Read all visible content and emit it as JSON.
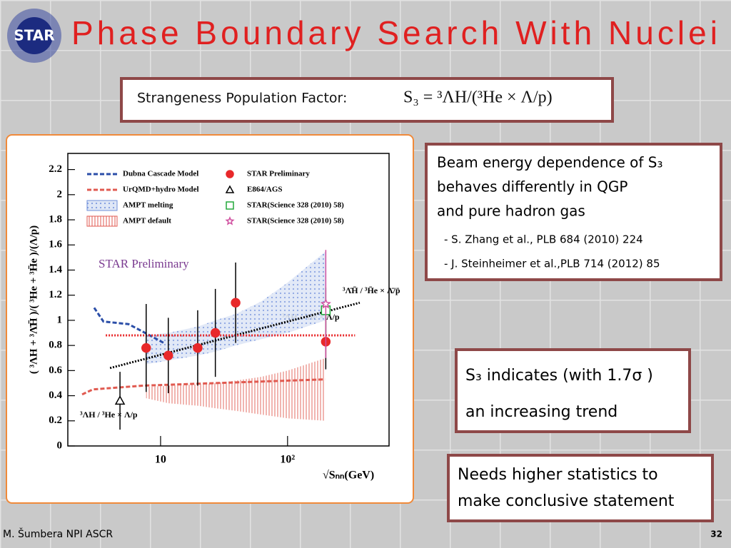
{
  "header": {
    "logo": "STAR",
    "title": "Phase Boundary Search With Nuclei"
  },
  "formula": {
    "label": "Strangeness Population Factor:",
    "expression": "S₃ = ³ΛH/(³He × Λ/p)"
  },
  "chart_data": {
    "type": "scatter",
    "x_label": "√Sₙₙ(GeV)",
    "y_label": "( ³ΛH + ³Λ̄H̄ )/( ³He + ³H̄e )/(Λ/p)",
    "log_x": true,
    "xlim": [
      1.86,
      630
    ],
    "ylim": [
      0,
      2.3
    ],
    "xticks": [
      10,
      {
        "value": 100,
        "label": "10²"
      }
    ],
    "yticks": [
      0,
      0.2,
      0.4,
      0.6,
      0.8,
      1,
      1.2,
      1.4,
      1.6,
      1.8,
      2,
      2.2
    ],
    "annotations": [
      "STAR Preliminary",
      "³ΛH / ³He × Λ/p",
      "³ΛH / ³He × Λ/p",
      "³Λ̄H̄ / ³H̄e × Λ̄/p̄"
    ],
    "series": [
      {
        "name": "Dubna Cascade Model",
        "kind": "line",
        "dash": "dashed",
        "color": "#2b4ea8",
        "x": [
          3.0,
          3.55,
          5.58,
          7.24,
          10.6
        ],
        "values": [
          1.1,
          0.99,
          0.97,
          0.91,
          0.82
        ]
      },
      {
        "name": "UrQMD+hydro Model",
        "kind": "line",
        "dash": "dashed",
        "color": "#e05a50",
        "x": [
          2.41,
          2.93,
          7.24,
          26.4,
          197
        ],
        "values": [
          0.41,
          0.45,
          0.48,
          0.5,
          0.53
        ]
      },
      {
        "name": "AMPT melting",
        "kind": "band",
        "color": "#6f8fd8",
        "x": [
          7.7,
          11.5,
          19.6,
          27,
          39,
          62,
          100,
          200
        ],
        "values": [
          0.65,
          0.68,
          0.72,
          0.75,
          0.8,
          0.85,
          0.9,
          1.0
        ],
        "upper": [
          0.88,
          0.9,
          0.95,
          1.0,
          1.05,
          1.15,
          1.3,
          1.55
        ]
      },
      {
        "name": "AMPT default",
        "kind": "band",
        "color": "#e05a50",
        "x": [
          7.7,
          11.5,
          19.6,
          27,
          39,
          62,
          100,
          200
        ],
        "values": [
          0.38,
          0.34,
          0.32,
          0.3,
          0.28,
          0.25,
          0.22,
          0.2
        ],
        "upper": [
          0.47,
          0.48,
          0.49,
          0.5,
          0.52,
          0.55,
          0.6,
          0.7
        ]
      },
      {
        "name": "STAR Preliminary",
        "kind": "marker",
        "marker": "circle",
        "color": "#e8282a",
        "filled": true,
        "x": [
          7.7,
          11.5,
          19.6,
          27,
          39,
          200
        ],
        "values": [
          0.78,
          0.72,
          0.78,
          0.9,
          1.14,
          0.83
        ],
        "errors": [
          0.35,
          0.3,
          0.3,
          0.35,
          0.32,
          0.22
        ]
      },
      {
        "name": "E864/AGS",
        "kind": "marker",
        "marker": "triangle",
        "color": "#000000",
        "filled": false,
        "x": [
          4.79
        ],
        "values": [
          0.36
        ],
        "errors": [
          0.23
        ]
      },
      {
        "name": "STAR(Science 328 (2010) 58)",
        "kind": "marker",
        "marker": "square",
        "color": "#22a83a",
        "filled": false,
        "x": [
          200
        ],
        "values": [
          1.08
        ],
        "errors": [
          0.18
        ]
      },
      {
        "name": "STAR(Science 328 (2010) 58)",
        "kind": "marker",
        "marker": "star",
        "color": "#d050a0",
        "filled": false,
        "x": [
          200
        ],
        "values": [
          1.13
        ],
        "errors": [
          0.43
        ]
      },
      {
        "kind": "line",
        "dash": "dotted",
        "color": "#000000",
        "x": [
          4,
          370
        ],
        "values": [
          0.62,
          1.14
        ]
      },
      {
        "kind": "line",
        "dash": "dotted",
        "color": "#e8282a",
        "x": [
          3.7,
          340
        ],
        "values": [
          0.88,
          0.88
        ]
      }
    ]
  },
  "boxes": [
    {
      "lines": [
        "Beam energy dependence of S₃",
        "behaves differently in QGP",
        "and pure hadron gas"
      ],
      "refs": [
        "- S. Zhang et al., PLB 684 (2010) 224",
        "- J. Steinheimer et al.,PLB 714 (2012) 85"
      ]
    },
    {
      "lines": [
        "S₃ indicates (with 1.7σ )",
        "an increasing trend"
      ]
    },
    {
      "lines": [
        "Needs higher statistics to",
        "make conclusive statement"
      ]
    }
  ],
  "footer": {
    "author": "M. Šumbera NPI ASCR",
    "page": "32"
  }
}
